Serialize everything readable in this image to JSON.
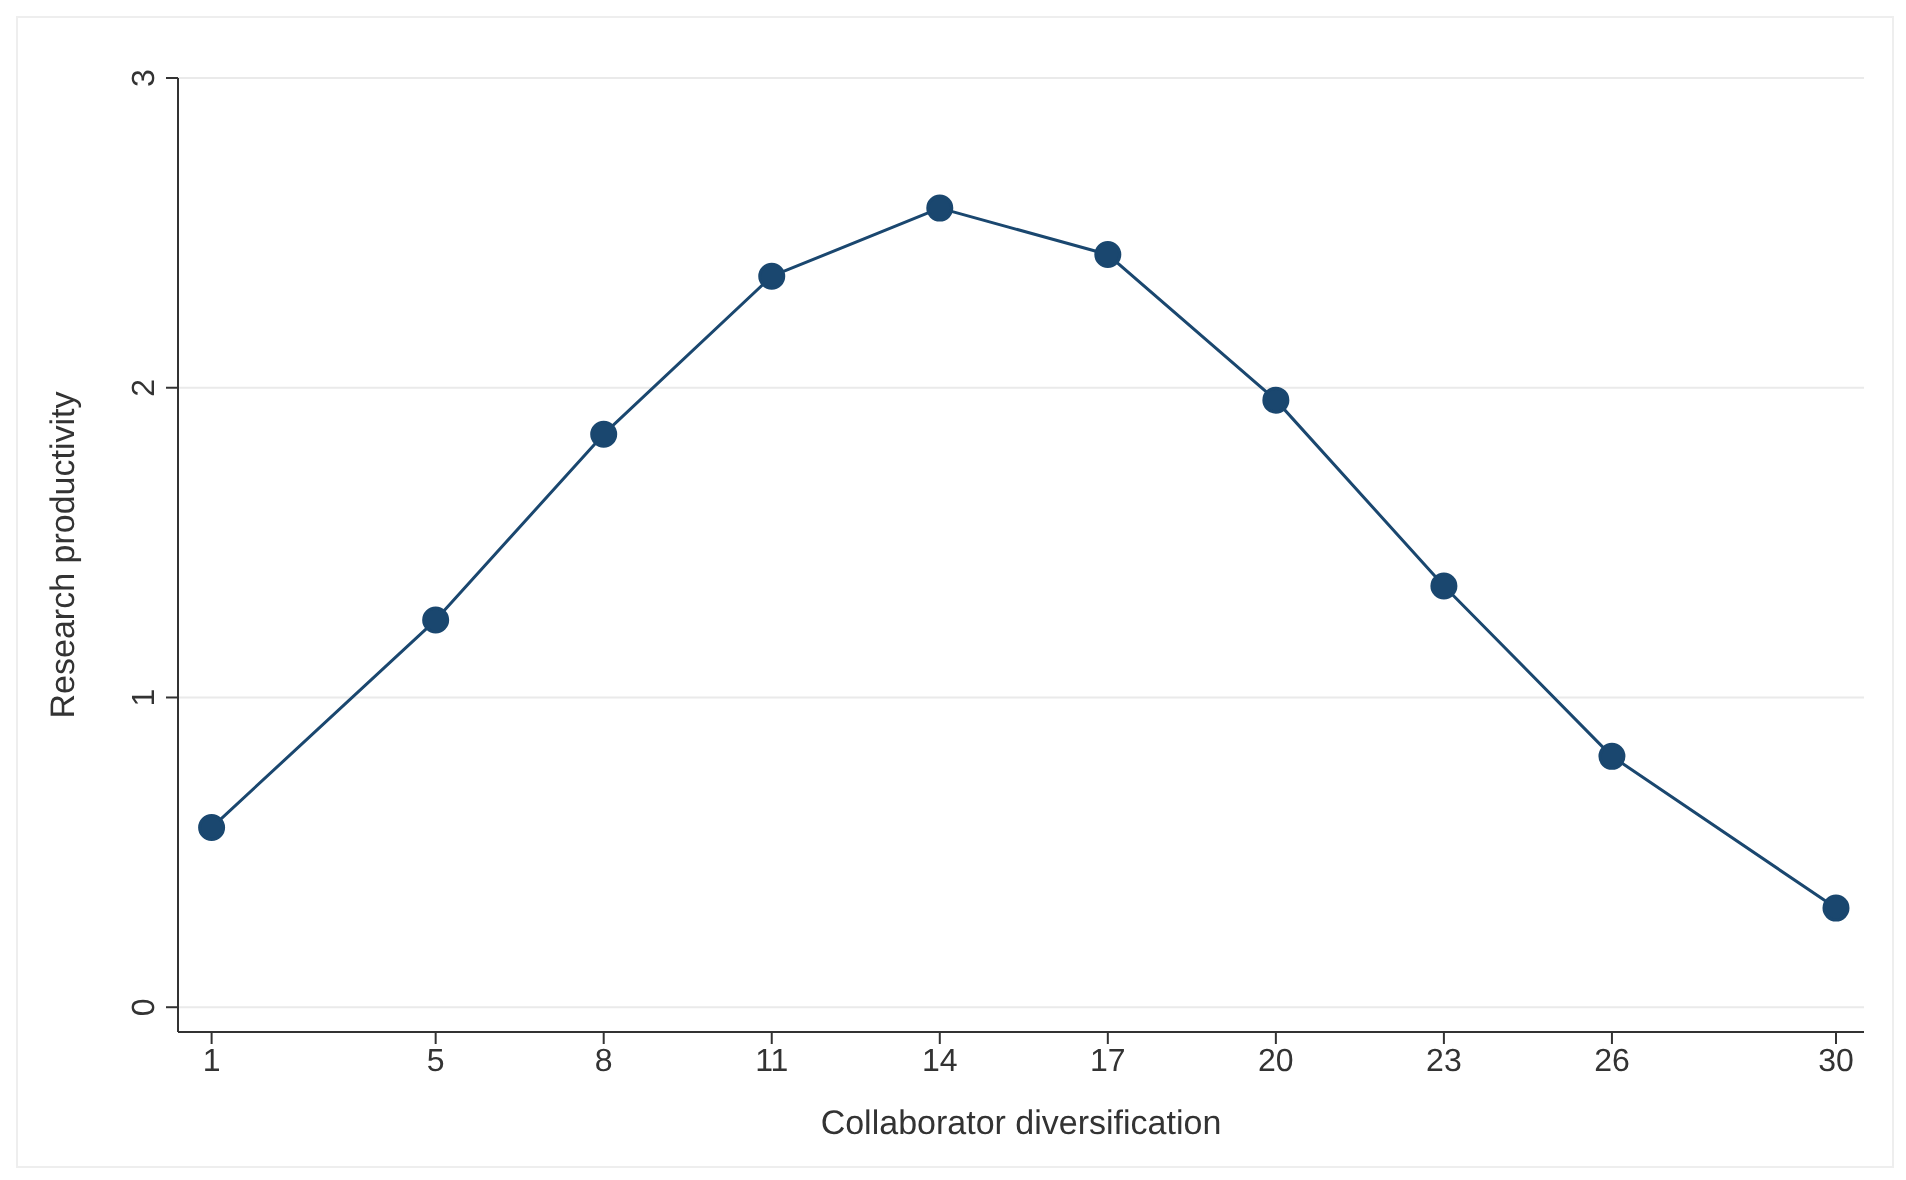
{
  "chart_data": {
    "type": "line",
    "xlabel": "Collaborator diversification",
    "ylabel": "Research productivity",
    "x": [
      1,
      5,
      8,
      11,
      14,
      17,
      20,
      23,
      26,
      30
    ],
    "series": [
      {
        "color": "#1a476f",
        "values": [
          0.58,
          1.25,
          1.85,
          2.36,
          2.58,
          2.43,
          1.96,
          1.36,
          0.81,
          0.32
        ]
      }
    ],
    "xlim": [
      0.4,
      30.5
    ],
    "xticks": [
      1,
      5,
      8,
      11,
      14,
      17,
      20,
      23,
      26,
      30
    ],
    "ylim": [
      -0.08,
      3
    ],
    "yticks": [
      0,
      1,
      2,
      3
    ],
    "grid": "y",
    "marker": "circle",
    "line_style": "solid"
  }
}
